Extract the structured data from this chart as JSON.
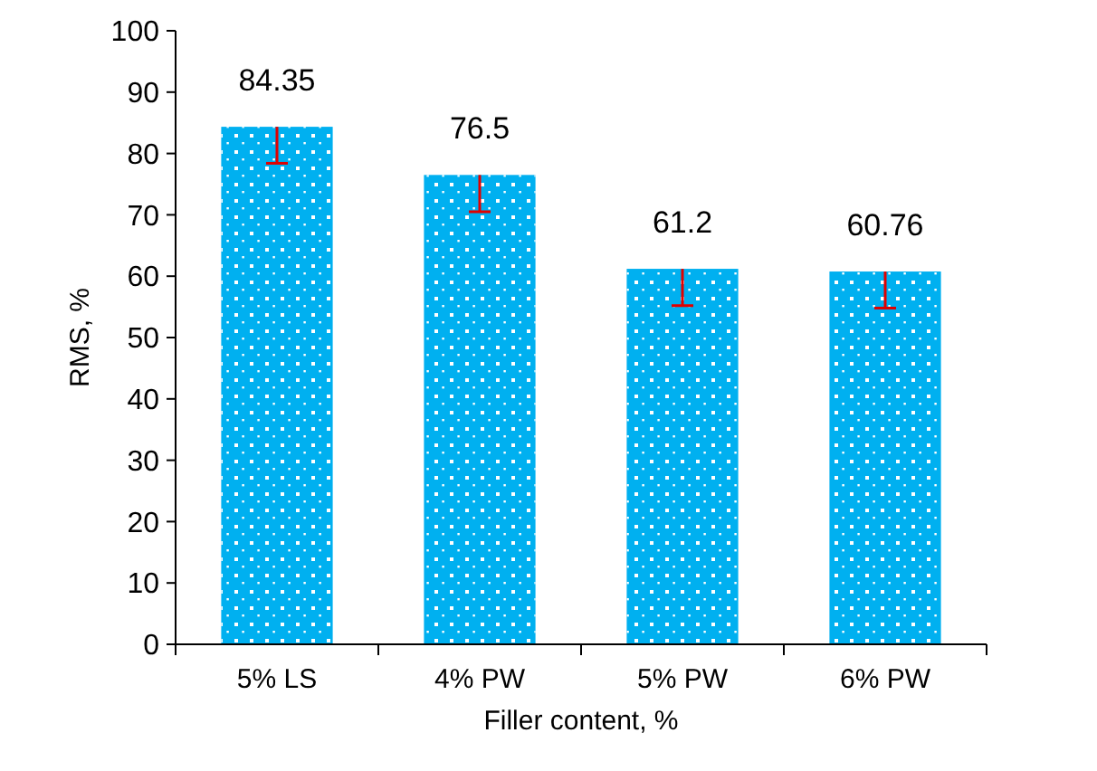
{
  "chart_data": {
    "type": "bar",
    "xlabel": "Filler content, %",
    "ylabel": "RMS, %",
    "categories": [
      "5% LS",
      "4% PW",
      "5% PW",
      "6% PW"
    ],
    "values": [
      84.35,
      76.5,
      61.2,
      60.76
    ],
    "color": "#00b0f0",
    "errors": [
      [
        78.4,
        84.35
      ],
      [
        70.5,
        76.5
      ],
      [
        55.2,
        61.2
      ],
      [
        54.8,
        60.76
      ]
    ],
    "ylim": [
      0,
      100
    ],
    "yticks": [
      0,
      10,
      20,
      30,
      40,
      50,
      60,
      70,
      80,
      90,
      100
    ],
    "grid": false,
    "data_labels": true
  }
}
